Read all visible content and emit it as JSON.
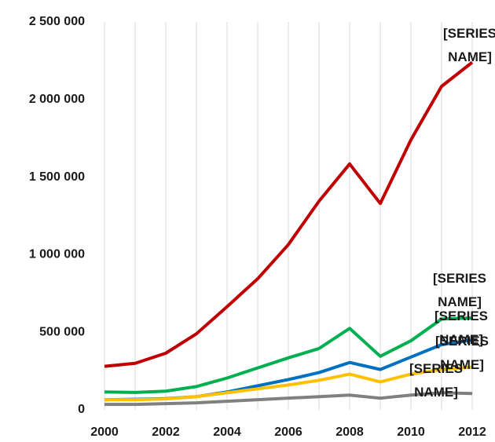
{
  "chart_data": {
    "type": "line",
    "categories": [
      "2000",
      null,
      "2002",
      null,
      "2004",
      null,
      "2006",
      null,
      "2008",
      null,
      "2010",
      null,
      "2012"
    ],
    "series": [
      {
        "name": "[SERIES NAME]",
        "color": "#c00000",
        "values": [
          280000,
          300000,
          365000,
          490000,
          665000,
          845000,
          1065000,
          1345000,
          1585000,
          1330000,
          1740000,
          2085000,
          2240000
        ]
      },
      {
        "name": "[SERIES NAME]",
        "color": "#00b050",
        "values": [
          115000,
          112000,
          120000,
          150000,
          205000,
          270000,
          335000,
          395000,
          525000,
          345000,
          445000,
          585000,
          592000
        ]
      },
      {
        "name": "[SERIES NAME]",
        "color": "#0070c0",
        "values": [
          65000,
          68000,
          72000,
          85000,
          115000,
          155000,
          195000,
          240000,
          305000,
          260000,
          340000,
          420000,
          450000
        ]
      },
      {
        "name": "[SERIES NAME]",
        "color": "#ffc000",
        "values": [
          65000,
          65000,
          70000,
          85000,
          110000,
          135000,
          160000,
          190000,
          230000,
          180000,
          230000,
          260000,
          275000
        ]
      },
      {
        "name": "[SERIES NAME]",
        "color": "#808080",
        "values": [
          35000,
          35000,
          40000,
          45000,
          55000,
          65000,
          75000,
          85000,
          95000,
          75000,
          95000,
          110000,
          105000
        ]
      }
    ],
    "ylim": [
      0,
      2500000
    ],
    "yticks": [
      0,
      {
        "value": 500000,
        "label": "500 000"
      },
      {
        "value": 1000000,
        "label": "1 000 000"
      },
      {
        "value": 1500000,
        "label": "1 500 000"
      },
      {
        "value": 2000000,
        "label": "2 000 000"
      },
      {
        "value": 2500000,
        "label": "2 500 000"
      }
    ],
    "grid": true
  }
}
